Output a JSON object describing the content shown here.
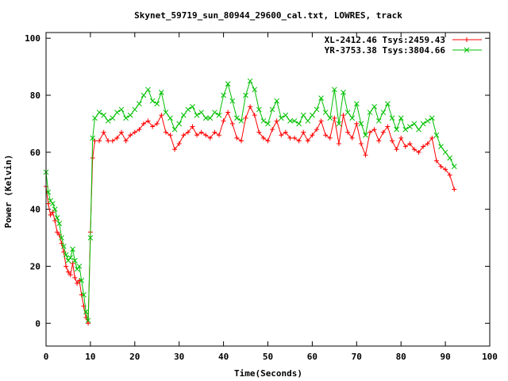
{
  "chart_data": {
    "type": "line",
    "title": "Skynet_59719_sun_80944_29600_cal.txt, LOWRES, track",
    "xlabel": "Time(Seconds)",
    "ylabel": "Power (Kelvin)",
    "xlim": [
      0,
      100
    ],
    "ylim": [
      -8,
      102
    ],
    "xticks": [
      0,
      10,
      20,
      30,
      40,
      50,
      60,
      70,
      80,
      90,
      100
    ],
    "yticks": [
      0,
      20,
      40,
      60,
      80,
      100
    ],
    "grid": false,
    "legend": "top-right",
    "series": [
      {
        "name": "XL-2412.46 Tsys:2459.43",
        "color": "#ff0000",
        "marker": "plus",
        "x": [
          0,
          0.5,
          1,
          1.5,
          2,
          2.5,
          3,
          3.5,
          4,
          4.5,
          5,
          5.5,
          6,
          6.5,
          7,
          7.5,
          8,
          8.5,
          9,
          9.5,
          10,
          10.5,
          11,
          12,
          13,
          14,
          15,
          16,
          17,
          18,
          19,
          20,
          21,
          22,
          23,
          24,
          25,
          26,
          27,
          28,
          29,
          30,
          31,
          32,
          33,
          34,
          35,
          36,
          37,
          38,
          39,
          40,
          41,
          42,
          43,
          44,
          45,
          46,
          47,
          48,
          49,
          50,
          51,
          52,
          53,
          54,
          55,
          56,
          57,
          58,
          59,
          60,
          61,
          62,
          63,
          64,
          65,
          66,
          67,
          68,
          69,
          70,
          71,
          72,
          73,
          74,
          75,
          76,
          77,
          78,
          79,
          80,
          81,
          82,
          83,
          84,
          85,
          86,
          87,
          88,
          89,
          90,
          91,
          92
        ],
        "values": [
          48,
          42,
          38,
          39,
          36,
          32,
          31,
          28,
          25,
          20,
          18,
          17,
          21,
          16,
          14,
          15,
          10,
          6,
          2,
          0,
          32,
          58,
          64,
          64,
          67,
          64,
          64,
          65,
          67,
          64,
          66,
          67,
          68,
          70,
          71,
          69,
          70,
          73,
          67,
          66,
          61,
          63,
          66,
          67,
          69,
          66,
          67,
          66,
          65,
          67,
          66,
          71,
          74,
          70,
          65,
          64,
          72,
          76,
          73,
          67,
          65,
          64,
          68,
          71,
          66,
          67,
          65,
          65,
          64,
          67,
          64,
          66,
          68,
          71,
          66,
          65,
          72,
          63,
          73,
          67,
          65,
          70,
          63,
          59,
          67,
          68,
          64,
          67,
          69,
          64,
          61,
          65,
          62,
          63,
          61,
          60,
          62,
          63,
          65,
          57,
          55,
          54,
          52,
          47
        ]
      },
      {
        "name": "YR-3753.38 Tsys:3804.66",
        "color": "#00c000",
        "marker": "cross",
        "x": [
          0,
          0.5,
          1,
          1.5,
          2,
          2.5,
          3,
          3.5,
          4,
          4.5,
          5,
          5.5,
          6,
          6.5,
          7,
          7.5,
          8,
          8.5,
          9,
          9.5,
          10,
          10.5,
          11,
          12,
          13,
          14,
          15,
          16,
          17,
          18,
          19,
          20,
          21,
          22,
          23,
          24,
          25,
          26,
          27,
          28,
          29,
          30,
          31,
          32,
          33,
          34,
          35,
          36,
          37,
          38,
          39,
          40,
          41,
          42,
          43,
          44,
          45,
          46,
          47,
          48,
          49,
          50,
          51,
          52,
          53,
          54,
          55,
          56,
          57,
          58,
          59,
          60,
          61,
          62,
          63,
          64,
          65,
          66,
          67,
          68,
          69,
          70,
          71,
          72,
          73,
          74,
          75,
          76,
          77,
          78,
          79,
          80,
          81,
          82,
          83,
          84,
          85,
          86,
          87,
          88,
          89,
          90,
          91,
          92
        ],
        "values": [
          53,
          46,
          43,
          42,
          40,
          37,
          35,
          30,
          27,
          24,
          22,
          23,
          26,
          22,
          19,
          20,
          15,
          10,
          4,
          1,
          30,
          65,
          72,
          74,
          73,
          71,
          72,
          74,
          75,
          72,
          73,
          75,
          77,
          80,
          82,
          78,
          77,
          81,
          74,
          72,
          68,
          70,
          73,
          75,
          76,
          73,
          74,
          72,
          72,
          74,
          73,
          80,
          84,
          78,
          72,
          71,
          80,
          85,
          82,
          75,
          71,
          70,
          75,
          78,
          72,
          73,
          71,
          71,
          70,
          73,
          71,
          73,
          75,
          79,
          74,
          72,
          82,
          70,
          81,
          74,
          72,
          77,
          70,
          66,
          74,
          76,
          71,
          74,
          77,
          72,
          68,
          72,
          68,
          69,
          70,
          68,
          70,
          71,
          72,
          66,
          62,
          60,
          58,
          55
        ]
      }
    ]
  }
}
